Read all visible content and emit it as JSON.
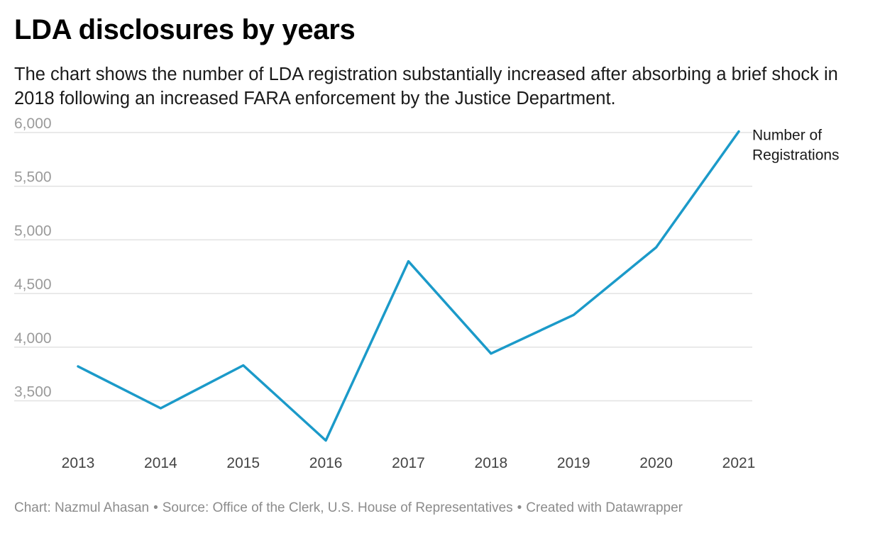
{
  "header": {
    "title": "LDA disclosures by years",
    "subtitle": "The chart shows the number of LDA registration substantially increased after absorbing a brief shock in 2018 following an increased FARA enforcement by the Justice Department."
  },
  "footer": {
    "chart_credit": "Chart: Nazmul Ahasan",
    "source": "Source: Office of the Clerk, U.S. House of Representatives",
    "created_with": "Created with Datawrapper",
    "separator": "•"
  },
  "colors": {
    "line": "#1b9ac9",
    "grid": "#e2e2e2",
    "tick_label": "#9a9a9a",
    "x_tick_label": "#444444"
  },
  "chart_data": {
    "type": "line",
    "title": "",
    "xlabel": "",
    "ylabel": "",
    "x": [
      "2013",
      "2014",
      "2015",
      "2016",
      "2017",
      "2018",
      "2019",
      "2020",
      "2021"
    ],
    "series": [
      {
        "name": "Number of Registrations",
        "name_lines": [
          "Number of",
          "Registrations"
        ],
        "values": [
          3820,
          3430,
          3830,
          3130,
          4800,
          3940,
          4300,
          4930,
          6010
        ]
      }
    ],
    "y_ticks": [
      3500,
      4000,
      4500,
      5000,
      5500,
      6000
    ],
    "y_tick_labels": [
      "3,500",
      "4,000",
      "4,500",
      "5,000",
      "5,500",
      "6,000"
    ],
    "ylim": [
      3100,
      6000
    ],
    "grid": true,
    "legend": "direct label at line end"
  }
}
